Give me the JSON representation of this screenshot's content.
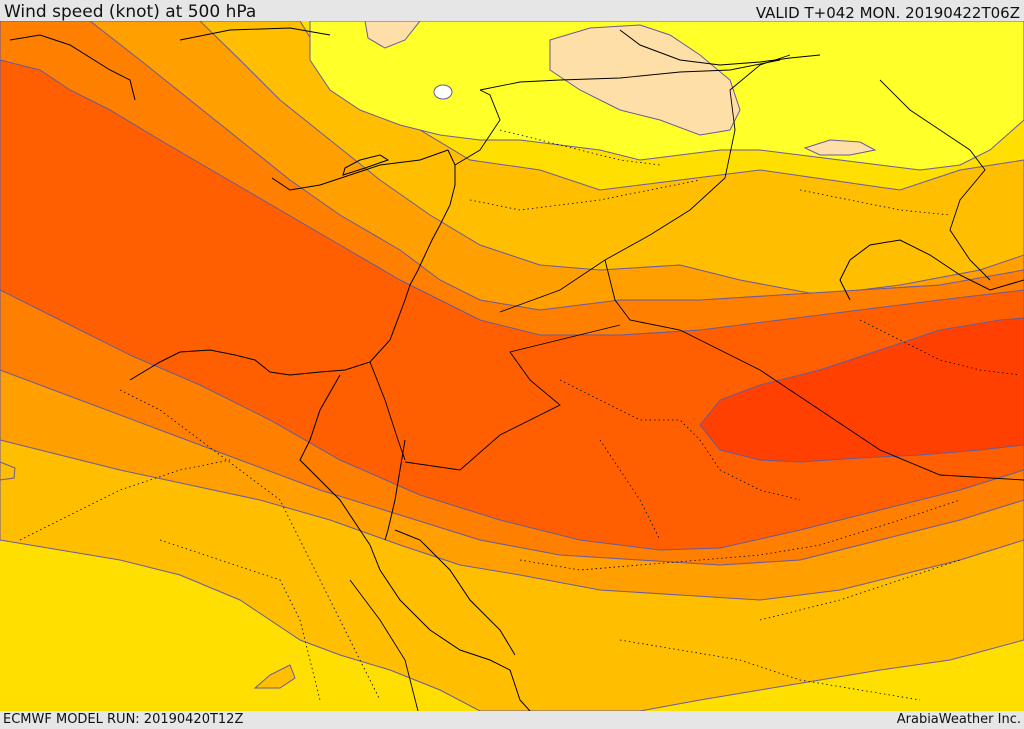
{
  "header": {
    "title": "Wind speed (knot) at 500 hPa",
    "valid": "VALID T+042 MON. 20190422T06Z"
  },
  "footer": {
    "model_run": "ECMWF MODEL RUN: 20190420T12Z",
    "credit": "ArabiaWeather Inc."
  },
  "colors": {
    "band_lowest": "#ffdfa8",
    "band_light": "#ffff2a",
    "band_yellow": "#ffdf00",
    "band_gold": "#ffbf00",
    "band_amber": "#ff9f00",
    "band_orange": "#ff7f00",
    "band_dark_orange": "#ff5f00",
    "band_red_orange": "#ff4000",
    "contour_line": "#6a5a9a",
    "coastline": "#000000"
  }
}
